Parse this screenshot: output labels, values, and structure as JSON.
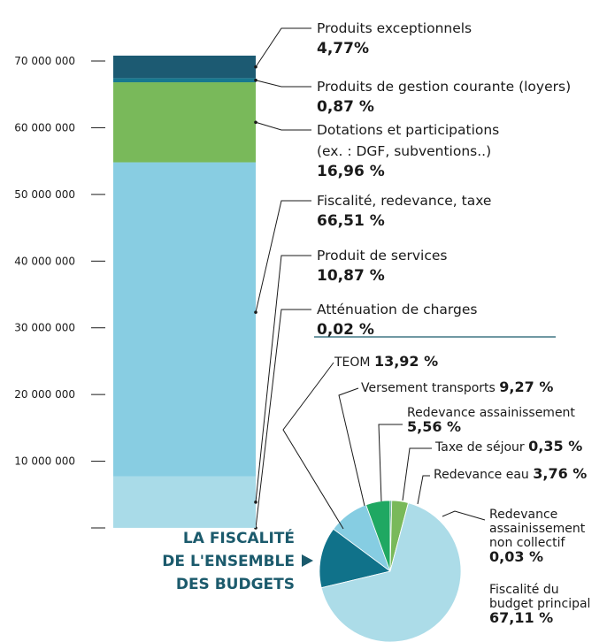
{
  "chart_data": [
    {
      "type": "stacked-bar",
      "ylim": [
        0,
        70000000
      ],
      "yticks": [
        {
          "value": 0,
          "label": null
        },
        {
          "value": 10000000,
          "label": "10 000 000"
        },
        {
          "value": 20000000,
          "label": "20 000 000"
        },
        {
          "value": 30000000,
          "label": "30 000 000"
        },
        {
          "value": 40000000,
          "label": "40 000 000"
        },
        {
          "value": 50000000,
          "label": "50 000 000"
        },
        {
          "value": 60000000,
          "label": "60 000 000"
        },
        {
          "value": 70000000,
          "label": "70 000 000"
        }
      ],
      "series": [
        {
          "name": "Atténuation de charges",
          "color": "#a9dbe8",
          "values": [
            14000
          ],
          "share": 0.02,
          "share_label": "0,02 %"
        },
        {
          "name": "Produit de services",
          "color": "#a9dbe8",
          "values": [
            7700000
          ],
          "share": 10.87,
          "share_label": "10,87 %"
        },
        {
          "name": "Fiscalité, redevance, taxe",
          "color": "#88cde2",
          "values": [
            47100000
          ],
          "share": 66.51,
          "share_label": "66,51 %"
        },
        {
          "name": "Dotations et participations\n(ex. : DGF, subventions..)",
          "color": "#79b95a",
          "values": [
            12000000
          ],
          "share": 16.96,
          "share_label": "16,96 %"
        },
        {
          "name": "Produits de gestion courante (loyers)",
          "color": "#17788f",
          "values": [
            616000
          ],
          "share": 0.87,
          "share_label": "0,87 %"
        },
        {
          "name": "Produits exceptionnels",
          "color": "#1c5a72",
          "values": [
            3380000
          ],
          "share": 4.77,
          "share_label": "4,77%"
        }
      ]
    },
    {
      "type": "pie",
      "title": [
        "LA FISCALITÉ",
        "DE L'ENSEMBLE",
        "DES BUDGETS"
      ],
      "categories": [
        "TEOM",
        "Versement transports",
        "Redevance assainissement",
        "Taxe de séjour",
        "Redevance eau",
        "Redevance\nassainissement\nnon collectif",
        "Fiscalité du\nbudget principal"
      ],
      "values": [
        13.92,
        9.27,
        5.56,
        0.35,
        3.76,
        0.03,
        67.11
      ],
      "value_labels": [
        "13,92 %",
        "9,27 %",
        "5,56 %",
        "0,35 %",
        "3,76 %",
        "0,03 %",
        "67,11 %"
      ],
      "colors": [
        "#10728a",
        "#86cde2",
        "#1fa862",
        "#1c8a68",
        "#79b95a",
        "#a9dbe8",
        "#acdce8"
      ]
    }
  ]
}
